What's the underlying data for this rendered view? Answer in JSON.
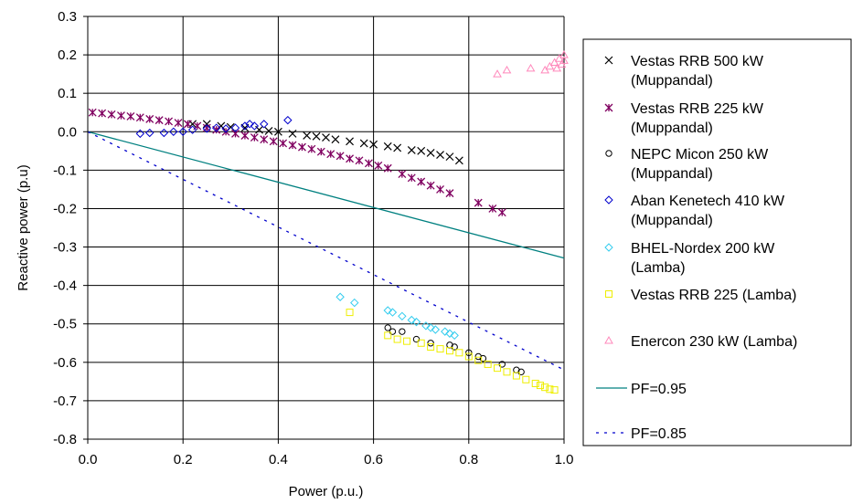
{
  "chart_data": {
    "type": "scatter",
    "xlabel": "Power (p.u.)",
    "ylabel": "Reactive power (p.u)",
    "xlim": [
      0,
      1.0
    ],
    "ylim": [
      -0.8,
      0.3
    ],
    "x_ticks": [
      0,
      0.2,
      0.4,
      0.6,
      0.8,
      1.0
    ],
    "x_tick_labels": [
      "0.0",
      "0.2",
      "0.4",
      "0.6",
      "0.8",
      "1.0"
    ],
    "y_ticks": [
      0.3,
      0.2,
      0.1,
      0.0,
      -0.1,
      -0.2,
      -0.3,
      -0.4,
      -0.5,
      -0.6,
      -0.7,
      -0.8
    ],
    "y_tick_labels": [
      "0.3",
      "0.2",
      "0.1",
      "0.0",
      "-0.1",
      "-0.2",
      "-0.3",
      "-0.4",
      "-0.5",
      "-0.6",
      "-0.7",
      "-0.8"
    ],
    "grid": true,
    "legend_position": "right",
    "series": [
      {
        "name": "Vestas RRB 500 kW (Muppandal)",
        "legend_lines": [
          "Vestas RRB 500 kW",
          "(Muppandal)"
        ],
        "marker": "x",
        "color": "#000000",
        "points": [
          [
            0.22,
            0.02
          ],
          [
            0.25,
            0.02
          ],
          [
            0.28,
            0.015
          ],
          [
            0.3,
            0.012
          ],
          [
            0.33,
            0.01
          ],
          [
            0.36,
            0.005
          ],
          [
            0.38,
            0.002
          ],
          [
            0.4,
            0.0
          ],
          [
            0.43,
            -0.005
          ],
          [
            0.46,
            -0.01
          ],
          [
            0.48,
            -0.012
          ],
          [
            0.5,
            -0.015
          ],
          [
            0.52,
            -0.02
          ],
          [
            0.55,
            -0.025
          ],
          [
            0.58,
            -0.03
          ],
          [
            0.6,
            -0.033
          ],
          [
            0.63,
            -0.038
          ],
          [
            0.65,
            -0.042
          ],
          [
            0.68,
            -0.048
          ],
          [
            0.7,
            -0.05
          ],
          [
            0.72,
            -0.055
          ],
          [
            0.74,
            -0.06
          ],
          [
            0.76,
            -0.065
          ],
          [
            0.78,
            -0.075
          ]
        ]
      },
      {
        "name": "Vestas RRB 225 kW (Muppandal)",
        "legend_lines": [
          "Vestas RRB 225 kW",
          "(Muppandal)"
        ],
        "marker": "star",
        "color": "#800060",
        "points": [
          [
            0.01,
            0.05
          ],
          [
            0.03,
            0.048
          ],
          [
            0.05,
            0.045
          ],
          [
            0.07,
            0.042
          ],
          [
            0.09,
            0.04
          ],
          [
            0.11,
            0.037
          ],
          [
            0.13,
            0.033
          ],
          [
            0.15,
            0.03
          ],
          [
            0.17,
            0.027
          ],
          [
            0.19,
            0.023
          ],
          [
            0.21,
            0.02
          ],
          [
            0.23,
            0.015
          ],
          [
            0.25,
            0.01
          ],
          [
            0.27,
            0.005
          ],
          [
            0.29,
            0.0
          ],
          [
            0.31,
            -0.005
          ],
          [
            0.33,
            -0.01
          ],
          [
            0.35,
            -0.015
          ],
          [
            0.37,
            -0.02
          ],
          [
            0.39,
            -0.025
          ],
          [
            0.41,
            -0.03
          ],
          [
            0.43,
            -0.035
          ],
          [
            0.45,
            -0.04
          ],
          [
            0.47,
            -0.045
          ],
          [
            0.49,
            -0.052
          ],
          [
            0.51,
            -0.058
          ],
          [
            0.53,
            -0.063
          ],
          [
            0.55,
            -0.07
          ],
          [
            0.57,
            -0.075
          ],
          [
            0.59,
            -0.082
          ],
          [
            0.61,
            -0.088
          ],
          [
            0.63,
            -0.095
          ],
          [
            0.66,
            -0.11
          ],
          [
            0.68,
            -0.12
          ],
          [
            0.7,
            -0.13
          ],
          [
            0.72,
            -0.14
          ],
          [
            0.74,
            -0.15
          ],
          [
            0.76,
            -0.16
          ],
          [
            0.82,
            -0.185
          ],
          [
            0.85,
            -0.2
          ],
          [
            0.87,
            -0.21
          ]
        ]
      },
      {
        "name": "NEPC Micon 250 kW (Muppandal)",
        "legend_lines": [
          "NEPC Micon 250 kW",
          "(Muppandal)"
        ],
        "marker": "circle",
        "color": "#000000",
        "points": [
          [
            0.63,
            -0.51
          ],
          [
            0.64,
            -0.52
          ],
          [
            0.66,
            -0.52
          ],
          [
            0.69,
            -0.54
          ],
          [
            0.72,
            -0.55
          ],
          [
            0.76,
            -0.555
          ],
          [
            0.77,
            -0.56
          ],
          [
            0.8,
            -0.575
          ],
          [
            0.82,
            -0.585
          ],
          [
            0.83,
            -0.59
          ],
          [
            0.87,
            -0.605
          ],
          [
            0.9,
            -0.62
          ],
          [
            0.91,
            -0.625
          ]
        ]
      },
      {
        "name": "Aban Kenetech 410 kW (Muppandal)",
        "legend_lines": [
          "Aban Kenetech 410 kW",
          "(Muppandal)"
        ],
        "marker": "diamond",
        "color": "#0000cc",
        "points": [
          [
            0.11,
            -0.005
          ],
          [
            0.13,
            -0.003
          ],
          [
            0.16,
            -0.003
          ],
          [
            0.18,
            0.0
          ],
          [
            0.2,
            0.0
          ],
          [
            0.22,
            0.005
          ],
          [
            0.25,
            0.008
          ],
          [
            0.27,
            0.01
          ],
          [
            0.29,
            0.008
          ],
          [
            0.31,
            0.01
          ],
          [
            0.33,
            0.015
          ],
          [
            0.34,
            0.02
          ],
          [
            0.35,
            0.015
          ],
          [
            0.37,
            0.02
          ],
          [
            0.42,
            0.03
          ]
        ]
      },
      {
        "name": "BHEL-Nordex 200 kW (Lamba)",
        "legend_lines": [
          "BHEL-Nordex 200 kW",
          "(Lamba)"
        ],
        "marker": "diamond",
        "color": "#33ccee",
        "points": [
          [
            0.53,
            -0.43
          ],
          [
            0.56,
            -0.445
          ],
          [
            0.63,
            -0.465
          ],
          [
            0.64,
            -0.47
          ],
          [
            0.66,
            -0.48
          ],
          [
            0.68,
            -0.49
          ],
          [
            0.69,
            -0.495
          ],
          [
            0.71,
            -0.505
          ],
          [
            0.72,
            -0.51
          ],
          [
            0.73,
            -0.515
          ],
          [
            0.75,
            -0.52
          ],
          [
            0.76,
            -0.525
          ],
          [
            0.77,
            -0.53
          ]
        ]
      },
      {
        "name": "Vestas RRB 225 (Lamba)",
        "legend_lines": [
          "Vestas RRB 225 (Lamba)"
        ],
        "marker": "square",
        "color": "#eeee00",
        "points": [
          [
            0.55,
            -0.47
          ],
          [
            0.63,
            -0.53
          ],
          [
            0.65,
            -0.54
          ],
          [
            0.67,
            -0.545
          ],
          [
            0.7,
            -0.55
          ],
          [
            0.72,
            -0.56
          ],
          [
            0.74,
            -0.565
          ],
          [
            0.76,
            -0.57
          ],
          [
            0.78,
            -0.575
          ],
          [
            0.8,
            -0.585
          ],
          [
            0.82,
            -0.595
          ],
          [
            0.84,
            -0.605
          ],
          [
            0.86,
            -0.615
          ],
          [
            0.88,
            -0.625
          ],
          [
            0.9,
            -0.635
          ],
          [
            0.92,
            -0.645
          ],
          [
            0.94,
            -0.655
          ],
          [
            0.95,
            -0.66
          ],
          [
            0.96,
            -0.665
          ],
          [
            0.97,
            -0.67
          ],
          [
            0.98,
            -0.672
          ]
        ]
      },
      {
        "name": "Enercon 230 kW (Lamba)",
        "legend_lines": [
          "Enercon 230 kW (Lamba)"
        ],
        "marker": "triangle",
        "color": "#ff88bb",
        "points": [
          [
            0.86,
            0.15
          ],
          [
            0.88,
            0.16
          ],
          [
            0.93,
            0.165
          ],
          [
            0.96,
            0.16
          ],
          [
            0.97,
            0.17
          ],
          [
            0.98,
            0.18
          ],
          [
            0.985,
            0.165
          ],
          [
            0.99,
            0.19
          ],
          [
            0.995,
            0.175
          ],
          [
            1.0,
            0.2
          ],
          [
            1.0,
            0.185
          ]
        ]
      }
    ],
    "lines": [
      {
        "name": "PF=0.95",
        "legend_lines": [
          "PF=0.95"
        ],
        "style": "solid",
        "color": "#008080",
        "points": [
          [
            0.0,
            0.0
          ],
          [
            1.0,
            -0.3287
          ]
        ]
      },
      {
        "name": "PF=0.85",
        "legend_lines": [
          "PF=0.85"
        ],
        "style": "dashed",
        "color": "#0000cc",
        "points": [
          [
            0.0,
            0.0
          ],
          [
            1.0,
            -0.6197
          ]
        ]
      }
    ]
  }
}
